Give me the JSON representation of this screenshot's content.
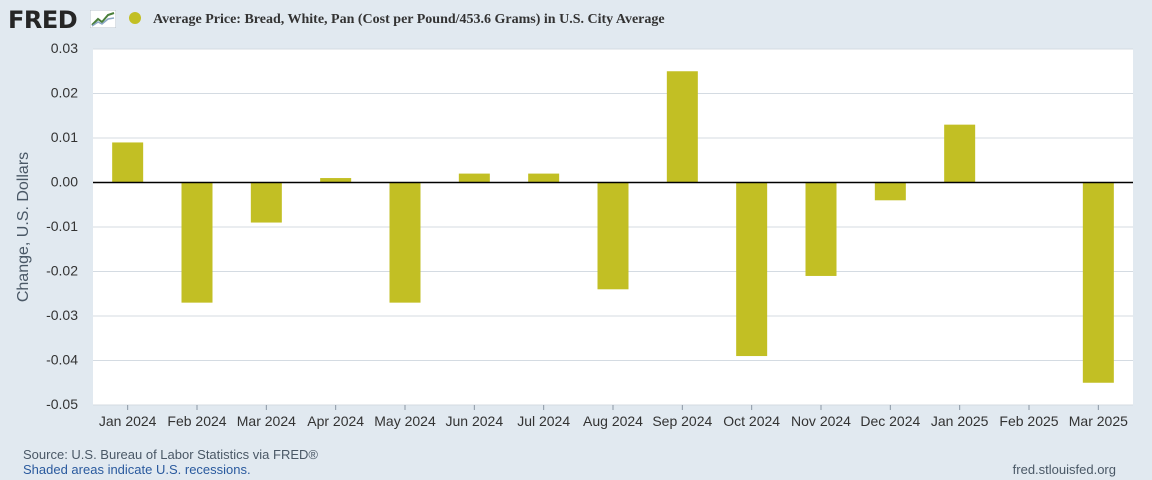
{
  "header": {
    "logo": "FRED",
    "legend_label": "Average Price: Bread, White, Pan (Cost per Pound/453.6 Grams) in U.S. City Average"
  },
  "colors": {
    "bar": "#c2bf24",
    "plot_bg": "#ffffff",
    "page_bg": "#e1e9f0",
    "grid": "#d4dbe2",
    "zero_line": "#000000",
    "text": "#333333"
  },
  "chart_data": {
    "type": "bar",
    "title": "Average Price: Bread, White, Pan (Cost per Pound/453.6 Grams) in U.S. City Average",
    "xlabel": "",
    "ylabel": "Change, U.S. Dollars",
    "ylim": [
      -0.05,
      0.03
    ],
    "yticks": [
      "0.03",
      "0.02",
      "0.01",
      "0.00",
      "-0.01",
      "-0.02",
      "-0.03",
      "-0.04",
      "-0.05"
    ],
    "grid": true,
    "legend": "top-left",
    "series": [
      {
        "name": "Average Price: Bread, White, Pan (Cost per Pound/453.6 Grams) in U.S. City Average",
        "values": [
          0.009,
          -0.027,
          -0.009,
          0.001,
          -0.027,
          0.002,
          0.002,
          -0.024,
          0.025,
          -0.039,
          -0.021,
          -0.004,
          0.013,
          0.0,
          -0.045
        ]
      }
    ],
    "categories": [
      "Jan 2024",
      "Feb 2024",
      "Mar 2024",
      "Apr 2024",
      "May 2024",
      "Jun 2024",
      "Jul 2024",
      "Aug 2024",
      "Sep 2024",
      "Oct 2024",
      "Nov 2024",
      "Dec 2024",
      "Jan 2025",
      "Feb 2025",
      "Mar 2025"
    ]
  },
  "footer": {
    "source": "Source: U.S. Bureau of Labor Statistics via FRED®",
    "shaded": "Shaded areas indicate U.S. recessions.",
    "url": "fred.stlouisfed.org"
  }
}
